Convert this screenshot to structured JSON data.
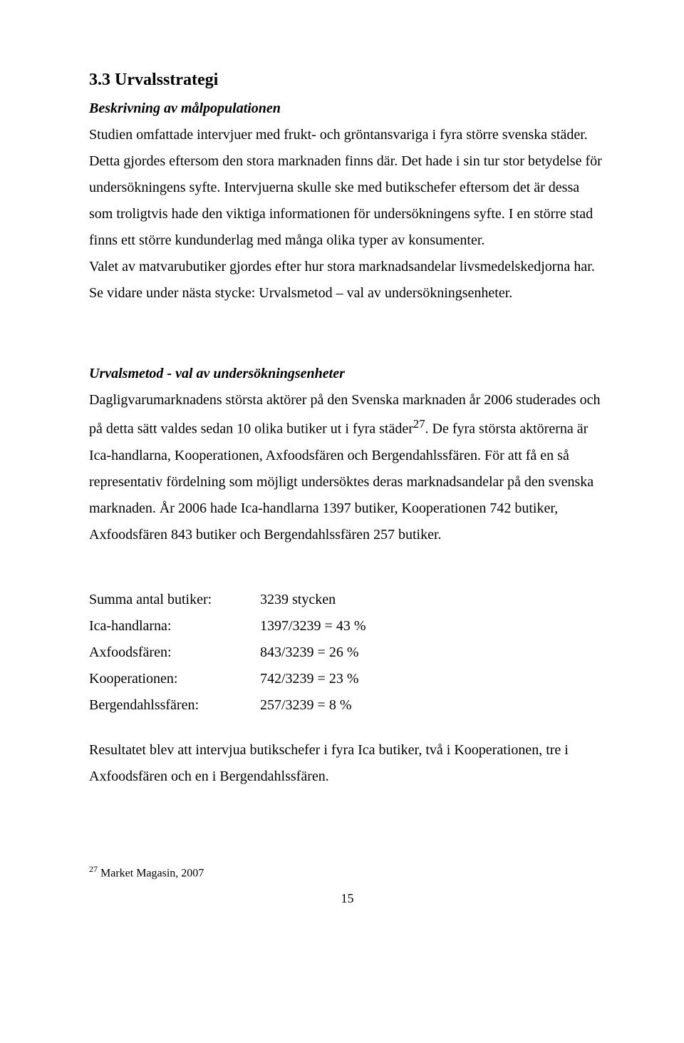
{
  "heading": "3.3 Urvalsstrategi",
  "sub1": "Beskrivning av målpopulationen",
  "para1": "Studien omfattade intervjuer med frukt- och gröntansvariga i fyra större svenska städer. Detta gjordes eftersom den stora marknaden finns där. Det hade i sin tur stor betydelse för undersökningens syfte. Intervjuerna skulle ske med butikschefer eftersom det är dessa som troligtvis hade den viktiga informationen för undersökningens syfte. I en större stad finns ett större kundunderlag med många olika typer av konsumenter.",
  "para1b": "Valet av matvarubutiker gjordes efter hur stora marknadsandelar livsmedelskedjorna har. Se vidare under nästa stycke: Urvalsmetod – val av undersökningsenheter.",
  "sub2": "Urvalsmetod - val av undersökningsenheter",
  "para2_part1": "Dagligvarumarknadens största aktörer på den Svenska marknaden år 2006 studerades och på detta sätt valdes sedan 10 olika butiker ut i fyra städer",
  "para2_sup": "27",
  "para2_part2": ". De fyra största aktörerna är Ica-handlarna, Kooperationen, Axfoodsfären och Bergendahlssfären. För att få en så representativ fördelning som möjligt undersöktes deras marknadsandelar på den svenska marknaden. År 2006 hade Ica-handlarna 1397 butiker, Kooperationen 742 butiker, Axfoodsfären 843 butiker och Bergendahlssfären 257 butiker.",
  "calc": [
    {
      "label": "Summa antal butiker:",
      "value": "3239 stycken"
    },
    {
      "label": "Ica-handlarna:",
      "value": "1397/3239  = 43 %"
    },
    {
      "label": "Axfoodsfären:",
      "value": "843/3239    = 26 %"
    },
    {
      "label": "Kooperationen:",
      "value": "742/3239    = 23 %"
    },
    {
      "label": "Bergendahlssfären:",
      "value": "257/3239    =   8 %"
    }
  ],
  "para3": "Resultatet blev att intervjua butikschefer i fyra Ica butiker, två i Kooperationen, tre i Axfoodsfären och en i Bergendahlssfären.",
  "footnote_num": "27",
  "footnote_text": " Market Magasin, 2007",
  "page_number": "15"
}
